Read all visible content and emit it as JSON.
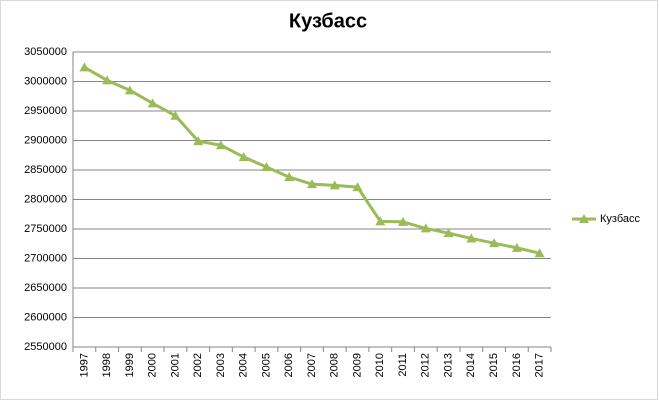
{
  "chart_data": {
    "type": "line",
    "title": "Кузбасс",
    "categories": [
      "1997",
      "1998",
      "1999",
      "2000",
      "2001",
      "2002",
      "2003",
      "2004",
      "2005",
      "2006",
      "2007",
      "2008",
      "2009",
      "2010",
      "2011",
      "2012",
      "2013",
      "2014",
      "2015",
      "2016",
      "2017"
    ],
    "series": [
      {
        "name": "Кузбасс",
        "color": "#9bbb59",
        "values": [
          3024000,
          3002000,
          2985000,
          2963000,
          2942000,
          2899000,
          2892000,
          2872000,
          2855000,
          2838000,
          2826000,
          2824000,
          2821000,
          2763000,
          2762000,
          2751000,
          2743000,
          2734000,
          2726000,
          2718000,
          2709000
        ]
      }
    ],
    "ylim": [
      2550000,
      3050000
    ],
    "yticks": [
      2550000,
      2600000,
      2650000,
      2700000,
      2750000,
      2800000,
      2850000,
      2900000,
      2950000,
      3000000,
      3050000
    ],
    "grid": true,
    "legend": "right"
  }
}
